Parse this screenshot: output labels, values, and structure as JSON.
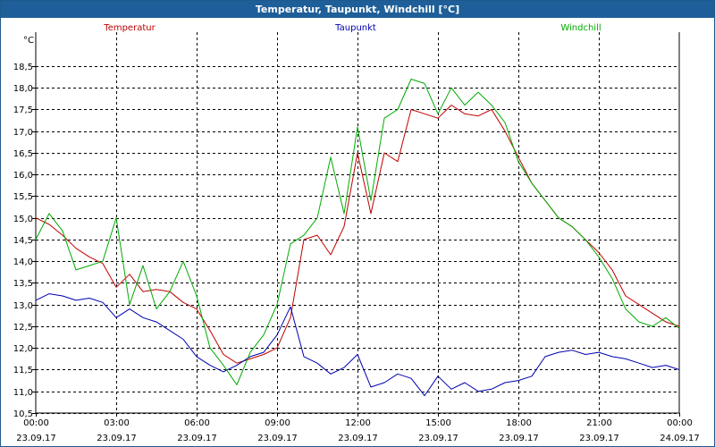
{
  "window": {
    "title": "Temperatur, Taupunkt, Windchill [°C]"
  },
  "chart_data": {
    "type": "line",
    "title": "Temperatur, Taupunkt, Windchill [°C]",
    "ylabel": "°C",
    "xlabel": "",
    "ylim": [
      10.5,
      19.2
    ],
    "xlim": [
      0,
      24
    ],
    "grid": true,
    "legend_position": "top",
    "yticks": [
      "10,5",
      "11,0",
      "11,5",
      "12,0",
      "12,5",
      "13,0",
      "13,5",
      "14,0",
      "14,5",
      "15,0",
      "15,5",
      "16,0",
      "16,5",
      "17,0",
      "17,5",
      "18,0",
      "18,5"
    ],
    "ytick_values": [
      10.5,
      11.0,
      11.5,
      12.0,
      12.5,
      13.0,
      13.5,
      14.0,
      14.5,
      15.0,
      15.5,
      16.0,
      16.5,
      17.0,
      17.5,
      18.0,
      18.5
    ],
    "xticks": [
      {
        "time": "00:00",
        "date": "23.09.17"
      },
      {
        "time": "03:00",
        "date": "23.09.17"
      },
      {
        "time": "06:00",
        "date": "23.09.17"
      },
      {
        "time": "09:00",
        "date": "23.09.17"
      },
      {
        "time": "12:00",
        "date": "23.09.17"
      },
      {
        "time": "15:00",
        "date": "23.09.17"
      },
      {
        "time": "18:00",
        "date": "23.09.17"
      },
      {
        "time": "21:00",
        "date": "23.09.17"
      },
      {
        "time": "00:00",
        "date": "24.09.17"
      }
    ],
    "xtick_values": [
      0,
      3,
      6,
      9,
      12,
      15,
      18,
      21,
      24
    ],
    "series": [
      {
        "name": "Temperatur",
        "color": "#c00000",
        "points": [
          [
            0,
            15.0
          ],
          [
            0.5,
            14.85
          ],
          [
            1,
            14.6
          ],
          [
            1.5,
            14.3
          ],
          [
            2,
            14.1
          ],
          [
            2.5,
            13.95
          ],
          [
            3,
            13.4
          ],
          [
            3.5,
            13.7
          ],
          [
            4,
            13.3
          ],
          [
            4.5,
            13.35
          ],
          [
            5,
            13.3
          ],
          [
            5.5,
            13.05
          ],
          [
            6,
            12.9
          ],
          [
            6.5,
            12.4
          ],
          [
            7,
            11.85
          ],
          [
            7.5,
            11.65
          ],
          [
            8,
            11.75
          ],
          [
            8.5,
            11.85
          ],
          [
            9,
            12.0
          ],
          [
            9.5,
            12.7
          ],
          [
            10,
            14.5
          ],
          [
            10.5,
            14.6
          ],
          [
            11,
            14.15
          ],
          [
            11.5,
            14.8
          ],
          [
            12,
            16.5
          ],
          [
            12.5,
            15.1
          ],
          [
            13,
            16.5
          ],
          [
            13.5,
            16.3
          ],
          [
            14,
            17.5
          ],
          [
            14.5,
            17.4
          ],
          [
            15,
            17.3
          ],
          [
            15.5,
            17.6
          ],
          [
            16,
            17.4
          ],
          [
            16.5,
            17.35
          ],
          [
            17,
            17.5
          ],
          [
            17.5,
            17.0
          ],
          [
            18,
            16.4
          ],
          [
            18.5,
            15.8
          ],
          [
            19,
            15.4
          ],
          [
            19.5,
            15.0
          ],
          [
            20,
            14.8
          ],
          [
            20.5,
            14.5
          ],
          [
            21,
            14.2
          ],
          [
            21.5,
            13.8
          ],
          [
            22,
            13.2
          ],
          [
            22.5,
            13.0
          ],
          [
            23,
            12.8
          ],
          [
            23.5,
            12.6
          ],
          [
            24,
            12.5
          ]
        ]
      },
      {
        "name": "Taupunkt",
        "color": "#0000b0",
        "points": [
          [
            0,
            13.1
          ],
          [
            0.5,
            13.25
          ],
          [
            1,
            13.2
          ],
          [
            1.5,
            13.1
          ],
          [
            2,
            13.15
          ],
          [
            2.5,
            13.05
          ],
          [
            3,
            12.7
          ],
          [
            3.5,
            12.9
          ],
          [
            4,
            12.7
          ],
          [
            4.5,
            12.6
          ],
          [
            5,
            12.4
          ],
          [
            5.5,
            12.2
          ],
          [
            6,
            11.8
          ],
          [
            6.5,
            11.6
          ],
          [
            7,
            11.45
          ],
          [
            7.5,
            11.6
          ],
          [
            8,
            11.8
          ],
          [
            8.5,
            11.9
          ],
          [
            9,
            12.3
          ],
          [
            9.5,
            12.95
          ],
          [
            10,
            11.8
          ],
          [
            10.5,
            11.65
          ],
          [
            11,
            11.4
          ],
          [
            11.5,
            11.55
          ],
          [
            12,
            11.85
          ],
          [
            12.5,
            11.1
          ],
          [
            13,
            11.2
          ],
          [
            13.5,
            11.4
          ],
          [
            14,
            11.3
          ],
          [
            14.5,
            10.9
          ],
          [
            15,
            11.35
          ],
          [
            15.5,
            11.05
          ],
          [
            16,
            11.2
          ],
          [
            16.5,
            11.0
          ],
          [
            17,
            11.05
          ],
          [
            17.5,
            11.2
          ],
          [
            18,
            11.25
          ],
          [
            18.5,
            11.35
          ],
          [
            19,
            11.8
          ],
          [
            19.5,
            11.9
          ],
          [
            20,
            11.95
          ],
          [
            20.5,
            11.85
          ],
          [
            21,
            11.9
          ],
          [
            21.5,
            11.8
          ],
          [
            22,
            11.75
          ],
          [
            22.5,
            11.65
          ],
          [
            23,
            11.55
          ],
          [
            23.5,
            11.6
          ],
          [
            24,
            11.5
          ]
        ]
      },
      {
        "name": "Windchill",
        "color": "#00aa00",
        "points": [
          [
            0,
            14.5
          ],
          [
            0.5,
            15.1
          ],
          [
            1,
            14.7
          ],
          [
            1.5,
            13.8
          ],
          [
            2,
            13.9
          ],
          [
            2.5,
            14.0
          ],
          [
            3,
            15.0
          ],
          [
            3.5,
            13.0
          ],
          [
            4,
            13.9
          ],
          [
            4.5,
            12.9
          ],
          [
            5,
            13.3
          ],
          [
            5.5,
            14.0
          ],
          [
            6,
            13.2
          ],
          [
            6.5,
            12.0
          ],
          [
            7,
            11.6
          ],
          [
            7.5,
            11.15
          ],
          [
            8,
            11.9
          ],
          [
            8.5,
            12.3
          ],
          [
            9,
            13.0
          ],
          [
            9.5,
            14.4
          ],
          [
            10,
            14.6
          ],
          [
            10.5,
            15.0
          ],
          [
            11,
            16.4
          ],
          [
            11.5,
            15.1
          ],
          [
            12,
            17.1
          ],
          [
            12.5,
            15.4
          ],
          [
            13,
            17.3
          ],
          [
            13.5,
            17.5
          ],
          [
            14,
            18.2
          ],
          [
            14.5,
            18.1
          ],
          [
            15,
            17.4
          ],
          [
            15.5,
            18.0
          ],
          [
            16,
            17.6
          ],
          [
            16.5,
            17.9
          ],
          [
            17,
            17.6
          ],
          [
            17.5,
            17.2
          ],
          [
            18,
            16.3
          ],
          [
            18.5,
            15.8
          ],
          [
            19,
            15.4
          ],
          [
            19.5,
            15.0
          ],
          [
            20,
            14.8
          ],
          [
            20.5,
            14.5
          ],
          [
            21,
            14.1
          ],
          [
            21.5,
            13.6
          ],
          [
            22,
            12.9
          ],
          [
            22.5,
            12.6
          ],
          [
            23,
            12.5
          ],
          [
            23.5,
            12.7
          ],
          [
            24,
            12.45
          ]
        ]
      }
    ]
  }
}
